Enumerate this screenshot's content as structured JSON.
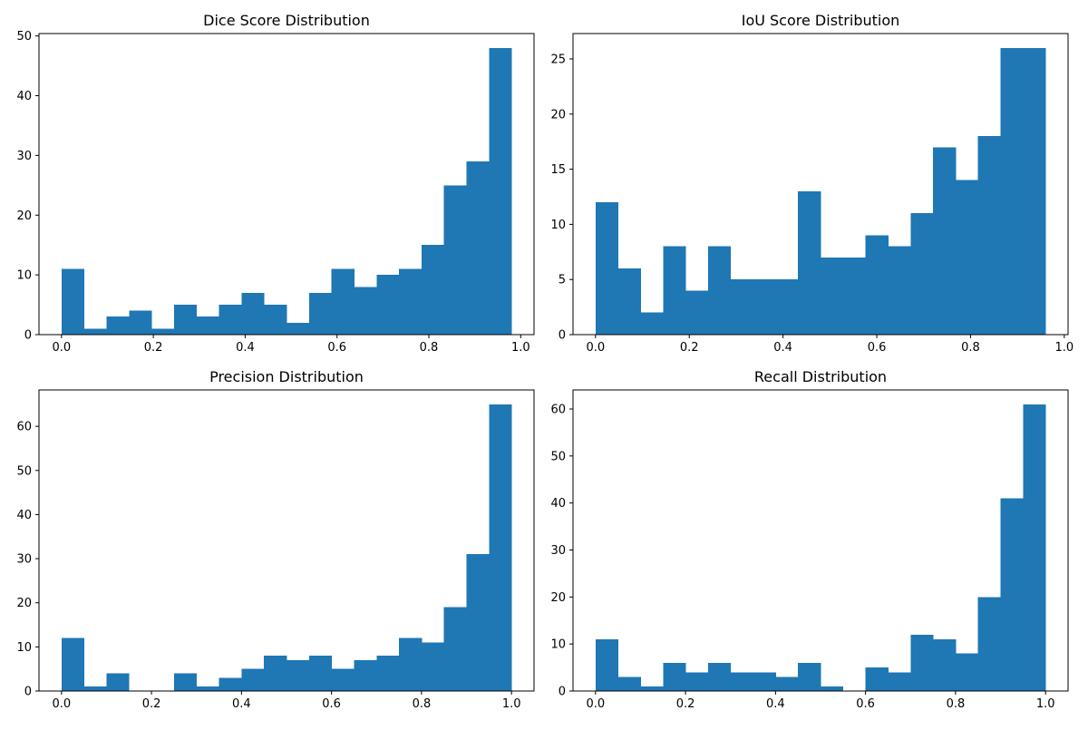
{
  "figure": {
    "background": "#ffffff",
    "bar_color": "#1f77b4"
  },
  "chart_data": [
    {
      "type": "bar",
      "title": "Dice Score Distribution",
      "xlabel": "",
      "ylabel": "",
      "bin_edges": [
        0.0,
        0.049,
        0.098,
        0.147,
        0.196,
        0.245,
        0.294,
        0.343,
        0.392,
        0.441,
        0.49,
        0.539,
        0.588,
        0.637,
        0.686,
        0.735,
        0.784,
        0.833,
        0.882,
        0.931,
        0.98
      ],
      "values": [
        11,
        1,
        3,
        4,
        1,
        5,
        3,
        5,
        7,
        5,
        2,
        7,
        11,
        8,
        10,
        11,
        15,
        25,
        29,
        48
      ],
      "xlim": [
        -0.049,
        1.029
      ],
      "ylim": [
        0,
        50.4
      ],
      "xticks": [
        0.0,
        0.2,
        0.4,
        0.6,
        0.8,
        1.0
      ],
      "xtick_labels": [
        "0.0",
        "0.2",
        "0.4",
        "0.6",
        "0.8",
        "1.0"
      ],
      "yticks": [
        0,
        10,
        20,
        30,
        40,
        50
      ],
      "ytick_labels": [
        "0",
        "10",
        "20",
        "30",
        "40",
        "50"
      ],
      "grid": false,
      "legend": "none"
    },
    {
      "type": "bar",
      "title": "IoU Score Distribution",
      "xlabel": "",
      "ylabel": "",
      "bin_edges": [
        0.0,
        0.048,
        0.096,
        0.144,
        0.192,
        0.24,
        0.288,
        0.336,
        0.384,
        0.432,
        0.48,
        0.528,
        0.576,
        0.624,
        0.672,
        0.72,
        0.768,
        0.816,
        0.864,
        0.912,
        0.96
      ],
      "values": [
        12,
        6,
        2,
        8,
        4,
        8,
        5,
        5,
        5,
        13,
        7,
        7,
        9,
        8,
        11,
        17,
        14,
        18,
        26,
        26
      ],
      "xlim": [
        -0.048,
        1.008
      ],
      "ylim": [
        0,
        27.3
      ],
      "xticks": [
        0.0,
        0.2,
        0.4,
        0.6,
        0.8,
        1.0
      ],
      "xtick_labels": [
        "0.0",
        "0.2",
        "0.4",
        "0.6",
        "0.8",
        "1.0"
      ],
      "yticks": [
        0,
        5,
        10,
        15,
        20,
        25
      ],
      "ytick_labels": [
        "0",
        "5",
        "10",
        "15",
        "20",
        "25"
      ],
      "grid": false,
      "legend": "none"
    },
    {
      "type": "bar",
      "title": "Precision Distribution",
      "xlabel": "",
      "ylabel": "",
      "bin_edges": [
        0.0,
        0.05,
        0.1,
        0.15,
        0.2,
        0.25,
        0.3,
        0.35,
        0.4,
        0.45,
        0.5,
        0.55,
        0.6,
        0.65,
        0.7,
        0.75,
        0.8,
        0.85,
        0.9,
        0.95,
        1.0
      ],
      "values": [
        12,
        1,
        4,
        0,
        0,
        4,
        1,
        3,
        5,
        8,
        7,
        8,
        5,
        7,
        8,
        12,
        11,
        19,
        31,
        65
      ],
      "xlim": [
        -0.05,
        1.05
      ],
      "ylim": [
        0,
        68.25
      ],
      "xticks": [
        0.0,
        0.2,
        0.4,
        0.6,
        0.8,
        1.0
      ],
      "xtick_labels": [
        "0.0",
        "0.2",
        "0.4",
        "0.6",
        "0.8",
        "1.0"
      ],
      "yticks": [
        0,
        10,
        20,
        30,
        40,
        50,
        60
      ],
      "ytick_labels": [
        "0",
        "10",
        "20",
        "30",
        "40",
        "50",
        "60"
      ],
      "grid": false,
      "legend": "none"
    },
    {
      "type": "bar",
      "title": "Recall Distribution",
      "xlabel": "",
      "ylabel": "",
      "bin_edges": [
        0.0,
        0.05,
        0.1,
        0.15,
        0.2,
        0.25,
        0.3,
        0.35,
        0.4,
        0.45,
        0.5,
        0.55,
        0.6,
        0.65,
        0.7,
        0.75,
        0.8,
        0.85,
        0.9,
        0.95,
        1.0
      ],
      "values": [
        11,
        3,
        1,
        6,
        4,
        6,
        4,
        4,
        3,
        6,
        1,
        0,
        5,
        4,
        12,
        11,
        8,
        20,
        41,
        61
      ],
      "xlim": [
        -0.05,
        1.05
      ],
      "ylim": [
        0,
        64.05
      ],
      "xticks": [
        0.0,
        0.2,
        0.4,
        0.6,
        0.8,
        1.0
      ],
      "xtick_labels": [
        "0.0",
        "0.2",
        "0.4",
        "0.6",
        "0.8",
        "1.0"
      ],
      "yticks": [
        0,
        10,
        20,
        30,
        40,
        50,
        60
      ],
      "ytick_labels": [
        "0",
        "10",
        "20",
        "30",
        "40",
        "50",
        "60"
      ],
      "grid": false,
      "legend": "none"
    }
  ]
}
